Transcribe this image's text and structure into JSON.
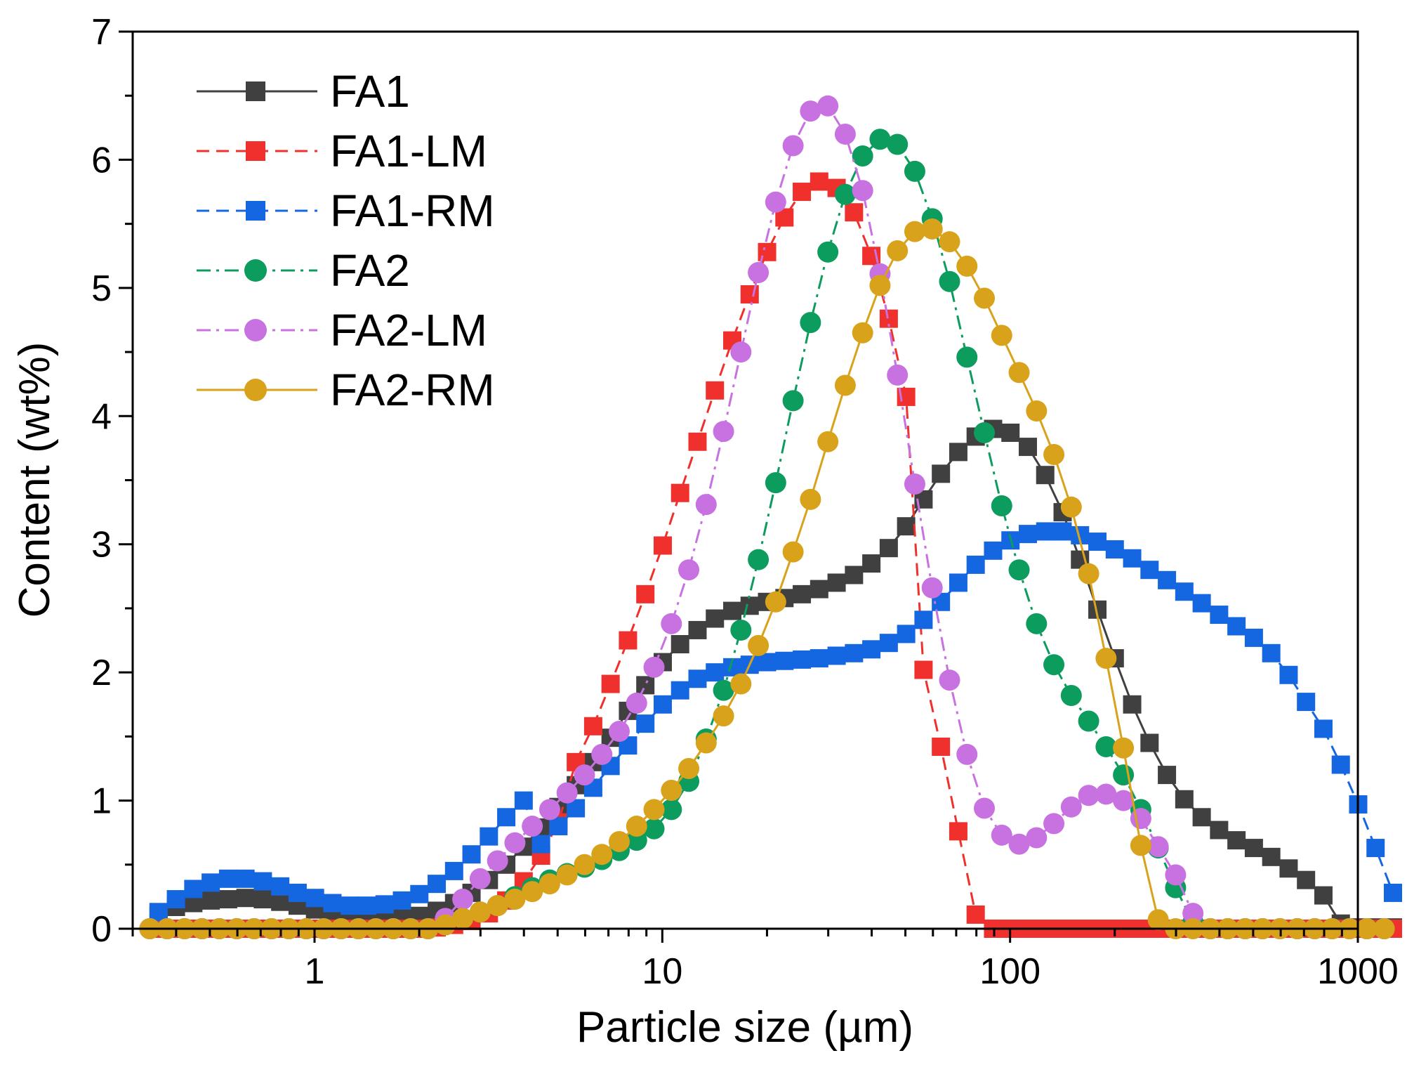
{
  "chart_data": {
    "type": "scatter",
    "title": "",
    "xlabel": "Particle size (µm)",
    "ylabel": "Content (wt%)",
    "xscale": "log",
    "xlim": [
      0.3,
      1000
    ],
    "ylim": [
      0,
      7
    ],
    "xticks": [
      {
        "value": 1,
        "label": "1"
      },
      {
        "value": 10,
        "label": "10"
      },
      {
        "value": 100,
        "label": "100"
      },
      {
        "value": 1000,
        "label": "1000"
      }
    ],
    "yticks": [
      {
        "value": 0,
        "label": "0"
      },
      {
        "value": 1,
        "label": "1"
      },
      {
        "value": 2,
        "label": "2"
      },
      {
        "value": 3,
        "label": "3"
      },
      {
        "value": 4,
        "label": "4"
      },
      {
        "value": 5,
        "label": "5"
      },
      {
        "value": 6,
        "label": "6"
      },
      {
        "value": 7,
        "label": "7"
      }
    ],
    "legend_position": "top-left",
    "bin_ratio": 1.122,
    "series": [
      {
        "name": "FA1",
        "color": "#404040",
        "marker": "square",
        "dash": "solid",
        "x_start": 0.356,
        "values": [
          0.1,
          0.17,
          0.2,
          0.22,
          0.23,
          0.24,
          0.23,
          0.21,
          0.18,
          0.15,
          0.12,
          0.1,
          0.08,
          0.07,
          0.08,
          0.1,
          0.14,
          0.2,
          0.28,
          0.38,
          0.5,
          0.64,
          0.79,
          0.95,
          1.12,
          1.3,
          1.49,
          1.7,
          1.9,
          2.08,
          2.22,
          2.33,
          2.42,
          2.48,
          2.52,
          2.55,
          2.58,
          2.61,
          2.65,
          2.7,
          2.76,
          2.85,
          2.97,
          3.14,
          3.35,
          3.55,
          3.72,
          3.84,
          3.9,
          3.87,
          3.76,
          3.54,
          3.25,
          2.88,
          2.49,
          2.11,
          1.75,
          1.45,
          1.2,
          1.01,
          0.87,
          0.77,
          0.69,
          0.63,
          0.56,
          0.47,
          0.38,
          0.26,
          0.04,
          0.01,
          0.01,
          0.01
        ]
      },
      {
        "name": "FA1-LM",
        "color": "#f0302c",
        "marker": "square",
        "dash": "dashed",
        "x_start": 0.356,
        "values": [
          0,
          0,
          0,
          0,
          0,
          0,
          0,
          0,
          0,
          0,
          0,
          0,
          0,
          0,
          0,
          0,
          0.01,
          0.03,
          0.06,
          0.12,
          0.22,
          0.37,
          0.57,
          0.83,
          1.3,
          1.58,
          1.91,
          2.25,
          2.61,
          2.99,
          3.4,
          3.8,
          4.2,
          4.59,
          4.95,
          5.28,
          5.55,
          5.75,
          5.83,
          5.78,
          5.59,
          5.25,
          4.76,
          4.15,
          2.02,
          1.42,
          0.76,
          0.11,
          0,
          0,
          0,
          0,
          0,
          0,
          0,
          0,
          0,
          0,
          0,
          0,
          0,
          0,
          0,
          0,
          0,
          0,
          0,
          0,
          0,
          0,
          0,
          0
        ]
      },
      {
        "name": "FA1-RM",
        "color": "#1467e0",
        "marker": "square",
        "dash": "dashed",
        "x_start": 0.356,
        "values": [
          0.13,
          0.23,
          0.31,
          0.36,
          0.39,
          0.39,
          0.37,
          0.33,
          0.28,
          0.24,
          0.2,
          0.18,
          0.18,
          0.19,
          0.22,
          0.27,
          0.35,
          0.45,
          0.58,
          0.72,
          0.87,
          1.0,
          0.66,
          0.8,
          0.94,
          1.1,
          1.27,
          1.43,
          1.6,
          1.75,
          1.86,
          1.95,
          2.0,
          2.04,
          2.06,
          2.08,
          2.09,
          2.1,
          2.11,
          2.13,
          2.15,
          2.18,
          2.23,
          2.3,
          2.41,
          2.55,
          2.7,
          2.84,
          2.95,
          3.03,
          3.08,
          3.1,
          3.1,
          3.07,
          3.02,
          2.96,
          2.89,
          2.8,
          2.72,
          2.63,
          2.54,
          2.45,
          2.36,
          2.27,
          2.15,
          1.98,
          1.77,
          1.56,
          1.28,
          0.97,
          0.63,
          0.28
        ]
      },
      {
        "name": "FA2",
        "color": "#0c9c5e",
        "marker": "circle",
        "dash": "dashdot",
        "x_start": 0.336,
        "values": [
          0,
          0,
          0,
          0,
          0,
          0,
          0,
          0,
          0,
          0,
          0,
          0,
          0,
          0,
          0,
          0,
          0,
          0.03,
          0.08,
          0.13,
          0.18,
          0.25,
          0.32,
          0.38,
          0.43,
          0.48,
          0.54,
          0.61,
          0.69,
          0.78,
          0.93,
          1.15,
          1.48,
          1.86,
          2.33,
          2.88,
          3.48,
          4.12,
          4.73,
          5.28,
          5.73,
          6.03,
          6.16,
          6.12,
          5.91,
          5.54,
          5.05,
          4.46,
          3.87,
          3.3,
          2.8,
          2.38,
          2.06,
          1.82,
          1.62,
          1.42,
          1.2,
          0.93,
          0.63,
          0.32,
          0.05,
          0,
          0,
          0,
          0,
          0,
          0,
          0,
          0,
          0,
          0,
          0
        ]
      },
      {
        "name": "FA2-LM",
        "color": "#c871e0",
        "marker": "circle",
        "dash": "dashdot",
        "x_start": 0.336,
        "values": [
          0,
          0,
          0,
          0,
          0,
          0,
          0,
          0,
          0,
          0,
          0,
          0,
          0,
          0,
          0,
          0,
          0,
          0.08,
          0.23,
          0.39,
          0.53,
          0.67,
          0.8,
          0.93,
          1.06,
          1.2,
          1.36,
          1.54,
          1.76,
          2.04,
          2.38,
          2.8,
          3.31,
          3.88,
          4.5,
          5.12,
          5.67,
          6.11,
          6.38,
          6.42,
          6.2,
          5.76,
          5.11,
          4.32,
          3.47,
          2.66,
          1.94,
          1.36,
          0.94,
          0.73,
          0.66,
          0.71,
          0.82,
          0.95,
          1.04,
          1.05,
          1.0,
          0.86,
          0.64,
          0.42,
          0.12,
          0,
          0,
          0,
          0,
          0,
          0,
          0,
          0,
          0,
          0,
          0
        ]
      },
      {
        "name": "FA2-RM",
        "color": "#d9a21b",
        "marker": "circle",
        "dash": "solid",
        "x_start": 0.336,
        "values": [
          0,
          0,
          0,
          0,
          0,
          0,
          0,
          0,
          0,
          0,
          0,
          0,
          0,
          0,
          0,
          0,
          0,
          0.03,
          0.08,
          0.13,
          0.18,
          0.23,
          0.29,
          0.35,
          0.42,
          0.5,
          0.58,
          0.68,
          0.8,
          0.93,
          1.08,
          1.25,
          1.45,
          1.66,
          1.91,
          2.21,
          2.55,
          2.94,
          3.35,
          3.8,
          4.24,
          4.65,
          5.02,
          5.29,
          5.44,
          5.46,
          5.36,
          5.17,
          4.92,
          4.63,
          4.34,
          4.04,
          3.7,
          3.29,
          2.77,
          2.11,
          1.41,
          0.65,
          0.07,
          0,
          0,
          0,
          0,
          0,
          0,
          0,
          0,
          0,
          0,
          0,
          0,
          0
        ]
      }
    ]
  }
}
